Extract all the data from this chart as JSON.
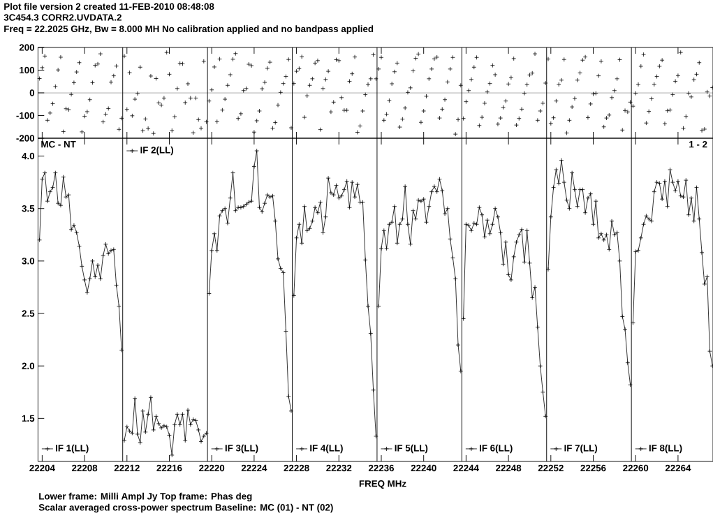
{
  "chart_data": [
    {
      "type": "scatter",
      "title": "Plot file version 2  created 11-FEB-2010 08:48:08",
      "subtitle": "3C454.3   CORR2.UVDATA.2",
      "annotations": [
        "Freq = 22.2025 GHz, Bw = 8.000 MH   No calibration applied and no bandpass applied"
      ],
      "xlim": [
        22203.6,
        22267.3
      ],
      "xticks": [
        22204,
        22208,
        22212,
        22216,
        22220,
        22224,
        22228,
        22232,
        22236,
        22240,
        22244,
        22248,
        22252,
        22256,
        22260,
        22264
      ],
      "ylim": [
        -200,
        200
      ],
      "yticks": [
        -200,
        -100,
        0,
        100,
        200
      ],
      "tick_labels": "y",
      "marker": "cross",
      "ref_lines": [
        {
          "axis": "y",
          "value": 0
        },
        {
          "axis": "x",
          "value": 22211.6
        },
        {
          "axis": "x",
          "value": 22219.6
        },
        {
          "axis": "x",
          "value": 22227.6
        },
        {
          "axis": "x",
          "value": 22235.6
        },
        {
          "axis": "x",
          "value": 22243.6
        },
        {
          "axis": "x",
          "value": 22251.6
        },
        {
          "axis": "x",
          "value": 22259.6
        }
      ],
      "series": [
        {
          "color": "#000000",
          "x": [
            22203.75,
            22204,
            22204.25,
            22204.5,
            22204.75,
            22205,
            22205.25,
            22205.5,
            22205.75,
            22206,
            22206.25,
            22206.5,
            22206.75,
            22207,
            22207.25,
            22207.5,
            22207.75,
            22208,
            22208.25,
            22208.5,
            22208.75,
            22209,
            22209.25,
            22209.5,
            22209.75,
            22210,
            22210.25,
            22210.5,
            22210.75,
            22211,
            22211.25,
            22211.5
          ],
          "values": [
            63,
            111,
            162,
            -121,
            -89,
            -48,
            28,
            101,
            157,
            -171,
            -70,
            -74,
            -7,
            45,
            92,
            133,
            -172,
            -103,
            -83,
            -30,
            45,
            121,
            127,
            172,
            -128,
            -94,
            -69,
            47,
            75,
            118,
            -161,
            -112
          ]
        },
        {
          "color": "#000000",
          "x": [
            22211.75,
            22212,
            22212.25,
            22212.5,
            22212.75,
            22213,
            22213.25,
            22213.5,
            22213.75,
            22214,
            22214.25,
            22214.5,
            22214.75,
            22215,
            22215.25,
            22215.5,
            22215.75,
            22216,
            22216.25,
            22216.5,
            22216.75,
            22217,
            22217.25,
            22217.5,
            22217.75,
            22218,
            22218.25,
            22218.5,
            22218.75,
            22219,
            22219.25,
            22219.5
          ],
          "values": [
            162,
            -73,
            89,
            -101,
            -28,
            -3,
            113,
            -167,
            -115,
            -157,
            74,
            -179,
            63,
            -44,
            -54,
            -23,
            178,
            82,
            -166,
            -105,
            19,
            130,
            128,
            -43,
            40,
            -23,
            -176,
            -23,
            -118,
            -156,
            139,
            -128
          ]
        },
        {
          "color": "#000000",
          "x": [
            22219.75,
            22220,
            22220.25,
            22220.5,
            22220.75,
            22221,
            22221.25,
            22221.5,
            22221.75,
            22222,
            22222.25,
            22222.5,
            22222.75,
            22223,
            22223.25,
            22223.5,
            22223.75,
            22224,
            22224.25,
            22224.5,
            22224.75,
            22225,
            22225.25,
            22225.5,
            22225.75,
            22226,
            22226.25,
            22226.5,
            22226.75,
            22227,
            22227.25,
            22227.5
          ],
          "values": [
            -36,
            13,
            114,
            -127,
            149,
            -76,
            -28,
            33,
            80,
            148,
            173,
            -113,
            -92,
            10,
            19,
            126,
            120,
            -173,
            -123,
            -80,
            18,
            46,
            108,
            135,
            -156,
            -131,
            -54,
            2,
            41,
            72,
            147,
            -154
          ]
        },
        {
          "color": "#000000",
          "x": [
            22227.75,
            22228,
            22228.25,
            22228.5,
            22228.75,
            22229,
            22229.25,
            22229.5,
            22229.75,
            22230,
            22230.25,
            22230.5,
            22230.75,
            22231,
            22231.25,
            22231.5,
            22231.75,
            22232,
            22232.25,
            22232.5,
            22232.75,
            22233,
            22233.25,
            22233.5,
            22233.75,
            22234,
            22234.25,
            22234.5,
            22234.75,
            22235,
            22235.25,
            22235.5
          ],
          "values": [
            41,
            95,
            107,
            159,
            -108,
            -13,
            33,
            62,
            131,
            142,
            -162,
            19,
            59,
            95,
            -84,
            -41,
            146,
            142,
            -21,
            -77,
            -77,
            51,
            84,
            158,
            -174,
            -146,
            -80,
            -8,
            37,
            62,
            168,
            62
          ]
        },
        {
          "color": "#000000",
          "x": [
            22235.75,
            22236,
            22236.25,
            22236.5,
            22236.75,
            22237,
            22237.25,
            22237.5,
            22237.75,
            22238,
            22238.25,
            22238.5,
            22238.75,
            22239,
            22239.25,
            22239.5,
            22239.75,
            22240,
            22240.25,
            22240.5,
            22240.75,
            22241,
            22241.25,
            22241.5,
            22241.75,
            22242,
            22242.25,
            22242.5,
            22242.75,
            22243,
            22243.25,
            22243.5
          ],
          "values": [
            105,
            156,
            -121,
            -94,
            -34,
            40,
            93,
            131,
            -151,
            -116,
            -67,
            2,
            22,
            97,
            152,
            171,
            -130,
            -80,
            -15,
            62,
            105,
            150,
            157,
            -111,
            -72,
            -30,
            48,
            105,
            156,
            -182,
            -118,
            33
          ]
        },
        {
          "color": "#000000",
          "x": [
            22243.75,
            22244,
            22244.25,
            22244.5,
            22244.75,
            22245,
            22245.25,
            22245.5,
            22245.75,
            22246,
            22246.25,
            22246.5,
            22246.75,
            22247,
            22247.25,
            22247.5,
            22247.75,
            22248,
            22248.25,
            22248.5,
            22248.75,
            22249,
            22249.25,
            22249.5,
            22249.75,
            22250,
            22250.25,
            22250.5,
            22250.75,
            22251,
            22251.25,
            22251.5
          ],
          "values": [
            -113,
            -39,
            10,
            59,
            113,
            156,
            -144,
            -108,
            -46,
            4,
            41,
            121,
            80,
            -138,
            -111,
            -64,
            -36,
            39,
            67,
            151,
            -142,
            -113,
            -72,
            -2,
            36,
            79,
            87,
            172,
            -121,
            -80,
            -46,
            43
          ]
        },
        {
          "color": "#000000",
          "x": [
            22251.75,
            22252,
            22252.25,
            22252.5,
            22252.75,
            22253,
            22253.25,
            22253.5,
            22253.75,
            22254,
            22254.25,
            22254.5,
            22254.75,
            22255,
            22255.25,
            22255.5,
            22255.75,
            22256,
            22256.25,
            22256.5,
            22256.75,
            22257,
            22257.25,
            22257.5,
            22257.75,
            22258,
            22258.25,
            22258.5,
            22258.75,
            22259,
            22259.25,
            22259.5
          ],
          "values": [
            149,
            -135,
            -110,
            -36,
            37,
            56,
            147,
            -177,
            -121,
            -62,
            -25,
            56,
            88,
            144,
            158,
            -109,
            -49,
            -5,
            -2,
            75,
            139,
            -150,
            -111,
            -98,
            -21,
            10,
            62,
            146,
            -164,
            -78,
            -84,
            -41
          ]
        },
        {
          "color": "#000000",
          "x": [
            22259.75,
            22260,
            22260.25,
            22260.5,
            22260.75,
            22261,
            22261.25,
            22261.5,
            22261.75,
            22262,
            22262.25,
            22262.5,
            22262.75,
            22263,
            22263.25,
            22263.5,
            22263.75,
            22264,
            22264.25,
            22264.5,
            22264.75,
            22265,
            22265.25,
            22265.5,
            22265.75,
            22266,
            22266.25,
            22266.5,
            22266.75,
            22267,
            22267.25
          ],
          "values": [
            -59,
            -2,
            37,
            117,
            169,
            -133,
            -82,
            -26,
            37,
            72,
            117,
            144,
            -136,
            -79,
            -76,
            -8,
            51,
            76,
            178,
            -156,
            -104,
            -2,
            -18,
            58,
            82,
            133,
            -166,
            -160,
            4,
            -14,
            23
          ]
        }
      ]
    },
    {
      "type": "line",
      "xlabel": "FREQ MHz",
      "annotations": [
        "MC - NT",
        "1 - 2",
        "Lower frame: Milli Ampl Jy   Top frame: Phas deg",
        "Scalar averaged cross-power spectrum    Baseline: MC (01) - NT (02)"
      ],
      "xlim": [
        22203.6,
        22267.3
      ],
      "xticks": [
        22204,
        22208,
        22212,
        22216,
        22220,
        22224,
        22228,
        22232,
        22236,
        22240,
        22244,
        22248,
        22252,
        22256,
        22260,
        22264
      ],
      "ylim": [
        1.09,
        4.17
      ],
      "yticks": [
        1.5,
        {
          "value": 2,
          "label": "2.0"
        },
        2.5,
        {
          "value": 3,
          "label": "3.0"
        },
        3.5,
        {
          "value": 4,
          "label": "4.0"
        }
      ],
      "marker": "cross",
      "line_style": "solid",
      "legend": "bottom",
      "ref_lines": [
        {
          "axis": "x",
          "value": 22211.6
        },
        {
          "axis": "x",
          "value": 22219.6
        },
        {
          "axis": "x",
          "value": 22227.6
        },
        {
          "axis": "x",
          "value": 22235.6
        },
        {
          "axis": "x",
          "value": 22243.6
        },
        {
          "axis": "x",
          "value": 22251.6
        },
        {
          "axis": "x",
          "value": 22259.6
        }
      ],
      "series": [
        {
          "name": "IF 1(LL)",
          "color": "#000000",
          "x": [
            22203.75,
            22204,
            22204.25,
            22204.5,
            22204.75,
            22205,
            22205.25,
            22205.5,
            22205.75,
            22206,
            22206.25,
            22206.5,
            22206.75,
            22207,
            22207.25,
            22207.5,
            22207.75,
            22208,
            22208.25,
            22208.5,
            22208.75,
            22209,
            22209.25,
            22209.5,
            22209.75,
            22210,
            22210.25,
            22210.5,
            22210.75,
            22211,
            22211.25,
            22211.5
          ],
          "values": [
            3.2,
            3.78,
            3.84,
            3.57,
            3.66,
            3.7,
            3.84,
            3.55,
            3.53,
            3.8,
            3.61,
            3.63,
            3.3,
            3.34,
            3.27,
            3.14,
            2.95,
            2.82,
            2.7,
            2.83,
            3.0,
            2.85,
            2.96,
            2.83,
            3.05,
            3.16,
            3.07,
            3.1,
            3.11,
            2.77,
            2.57,
            2.15
          ]
        },
        {
          "name": "IF 2(LL)",
          "color": "#000000",
          "x": [
            22211.75,
            22212,
            22212.25,
            22212.5,
            22212.75,
            22213,
            22213.25,
            22213.5,
            22213.75,
            22214,
            22214.25,
            22214.5,
            22214.75,
            22215,
            22215.25,
            22215.5,
            22215.75,
            22216,
            22216.25,
            22216.5,
            22216.75,
            22217,
            22217.25,
            22217.5,
            22217.75,
            22218,
            22218.25,
            22218.5,
            22218.75,
            22219,
            22219.25,
            22219.5
          ],
          "values": [
            1.29,
            1.42,
            1.38,
            1.36,
            1.69,
            1.35,
            1.27,
            1.57,
            1.37,
            1.54,
            1.7,
            1.39,
            1.52,
            1.45,
            1.41,
            1.43,
            1.42,
            1.34,
            1.15,
            1.44,
            1.54,
            1.44,
            1.54,
            1.29,
            1.58,
            1.44,
            1.49,
            1.48,
            1.39,
            1.28,
            1.33,
            1.36
          ]
        },
        {
          "name": "IF 3(LL)",
          "color": "#000000",
          "x": [
            22219.75,
            22220,
            22220.25,
            22220.5,
            22220.75,
            22221,
            22221.25,
            22221.5,
            22221.75,
            22222,
            22222.25,
            22222.5,
            22222.75,
            22223,
            22223.25,
            22223.5,
            22223.75,
            22224,
            22224.25,
            22224.5,
            22224.75,
            22225,
            22225.25,
            22225.5,
            22225.75,
            22226,
            22226.25,
            22226.5,
            22226.75,
            22227,
            22227.25,
            22227.5
          ],
          "values": [
            2.69,
            3.1,
            3.26,
            3.1,
            3.43,
            3.48,
            3.5,
            3.36,
            3.6,
            3.84,
            3.48,
            3.51,
            3.51,
            3.52,
            3.54,
            3.56,
            3.57,
            3.9,
            4.05,
            3.51,
            3.47,
            3.55,
            3.63,
            3.61,
            3.62,
            3.38,
            3.02,
            2.93,
            2.89,
            2.33,
            1.71,
            1.57
          ]
        },
        {
          "name": "IF 4(LL)",
          "color": "#000000",
          "x": [
            22227.75,
            22228,
            22228.25,
            22228.5,
            22228.75,
            22229,
            22229.25,
            22229.5,
            22229.75,
            22230,
            22230.25,
            22230.5,
            22230.75,
            22231,
            22231.25,
            22231.5,
            22231.75,
            22232,
            22232.25,
            22232.5,
            22232.75,
            22233,
            22233.25,
            22233.5,
            22233.75,
            22234,
            22234.25,
            22234.5,
            22234.75,
            22235,
            22235.25,
            22235.5
          ],
          "values": [
            2.67,
            3.22,
            3.35,
            3.17,
            3.52,
            3.29,
            3.31,
            3.38,
            3.51,
            3.46,
            3.56,
            3.27,
            3.42,
            3.79,
            3.65,
            3.63,
            3.72,
            3.6,
            3.62,
            3.68,
            3.76,
            3.51,
            3.75,
            3.61,
            3.73,
            3.56,
            3.56,
            3.01,
            2.57,
            2.31,
            1.77,
            1.33
          ]
        },
        {
          "name": "IF 5(LL)",
          "color": "#000000",
          "x": [
            22235.75,
            22236,
            22236.25,
            22236.5,
            22236.75,
            22237,
            22237.25,
            22237.5,
            22237.75,
            22238,
            22238.25,
            22238.5,
            22238.75,
            22239,
            22239.25,
            22239.5,
            22239.75,
            22240,
            22240.25,
            22240.5,
            22240.75,
            22241,
            22241.25,
            22241.5,
            22241.75,
            22242,
            22242.25,
            22242.5,
            22242.75,
            22243,
            22243.25,
            22243.5
          ],
          "values": [
            2.57,
            3.12,
            3.29,
            3.12,
            3.35,
            3.37,
            3.52,
            3.17,
            3.35,
            3.4,
            3.71,
            3.35,
            3.16,
            3.48,
            3.4,
            3.58,
            3.57,
            3.59,
            3.37,
            3.52,
            3.66,
            3.71,
            3.66,
            3.78,
            3.67,
            3.45,
            3.5,
            3.21,
            3.03,
            2.83,
            2.2,
            1.95
          ]
        },
        {
          "name": "IF 6(LL)",
          "color": "#000000",
          "x": [
            22243.75,
            22244,
            22244.25,
            22244.5,
            22244.75,
            22245,
            22245.25,
            22245.5,
            22245.75,
            22246,
            22246.25,
            22246.5,
            22246.75,
            22247,
            22247.25,
            22247.5,
            22247.75,
            22248,
            22248.25,
            22248.5,
            22248.75,
            22249,
            22249.25,
            22249.5,
            22249.75,
            22250,
            22250.25,
            22250.5,
            22250.75,
            22251,
            22251.25,
            22251.5
          ],
          "values": [
            2.45,
            3.35,
            3.34,
            3.29,
            3.36,
            3.35,
            3.51,
            3.44,
            3.23,
            3.39,
            3.26,
            3.35,
            3.5,
            3.42,
            3.27,
            2.97,
            3.18,
            2.87,
            2.82,
            3.04,
            3.18,
            3.25,
            3.3,
            2.99,
            3.29,
            2.98,
            2.65,
            2.75,
            2.37,
            2.0,
            1.75,
            1.52
          ]
        },
        {
          "name": "IF 7(LL)",
          "color": "#000000",
          "x": [
            22251.75,
            22252,
            22252.25,
            22252.5,
            22252.75,
            22253,
            22253.25,
            22253.5,
            22253.75,
            22254,
            22254.25,
            22254.5,
            22254.75,
            22255,
            22255.25,
            22255.5,
            22255.75,
            22256,
            22256.25,
            22256.5,
            22256.75,
            22257,
            22257.25,
            22257.5,
            22257.75,
            22258,
            22258.25,
            22258.5,
            22258.75,
            22259,
            22259.25,
            22259.5
          ],
          "values": [
            2.92,
            3.42,
            3.7,
            3.87,
            3.74,
            3.96,
            3.75,
            3.58,
            3.5,
            3.84,
            3.68,
            3.52,
            3.68,
            3.68,
            3.46,
            3.6,
            3.64,
            3.35,
            3.57,
            3.22,
            3.26,
            3.2,
            3.25,
            3.11,
            3.38,
            3.25,
            3.27,
            3.0,
            2.47,
            2.35,
            2.03,
            1.82
          ]
        },
        {
          "name": "IF 8(LL)",
          "color": "#000000",
          "x": [
            22259.75,
            22260,
            22260.25,
            22260.5,
            22260.75,
            22261,
            22261.25,
            22261.5,
            22261.75,
            22262,
            22262.25,
            22262.5,
            22262.75,
            22263,
            22263.25,
            22263.5,
            22263.75,
            22264,
            22264.25,
            22264.5,
            22264.75,
            22265,
            22265.25,
            22265.5,
            22265.75,
            22266,
            22266.25,
            22266.5,
            22266.75,
            22267,
            22267.25
          ],
          "values": [
            2.41,
            3.09,
            3.1,
            3.22,
            3.35,
            3.43,
            3.4,
            3.38,
            3.66,
            3.75,
            3.74,
            3.59,
            3.76,
            3.52,
            3.87,
            3.75,
            3.67,
            3.76,
            3.62,
            3.61,
            3.77,
            3.44,
            3.6,
            3.38,
            3.7,
            3.4,
            3.08,
            2.78,
            2.85,
            2.14,
            2.0
          ]
        }
      ]
    }
  ]
}
